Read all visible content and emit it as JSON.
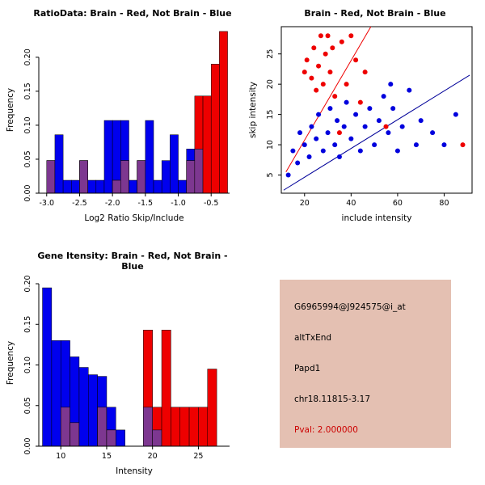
{
  "info": {
    "bg": "#e4c0b2",
    "pval_color": "#cc0000",
    "lines": [
      "G6965994@J924575@i_at",
      "altTxEnd",
      "Papd1",
      "chr18.11815-3.17"
    ],
    "pval": "Pval: 2.000000"
  },
  "chart_data": [
    {
      "type": "bar",
      "subtype": "overlaid-histogram",
      "title": "RatioData: Brain - Red, Not Brain - Blue",
      "xlabel": "Log2 Ratio Skip/Include",
      "ylabel": "Frequency",
      "xlim": [
        -3.12,
        -0.22
      ],
      "ylim": [
        0,
        0.245
      ],
      "xticks": [
        -3.0,
        -2.5,
        -2.0,
        -1.5,
        -1.0,
        -0.5
      ],
      "xtick_labels": [
        "-3.0",
        "-2.5",
        "-2.0",
        "-1.5",
        "-1.0",
        "-0.5"
      ],
      "yticks": [
        0,
        0.05,
        0.1,
        0.15,
        0.2
      ],
      "ytick_labels": [
        "0.00",
        "0.05",
        "0.10",
        "0.15",
        "0.20"
      ],
      "bin_start": -3.0,
      "bin_width": 0.125,
      "overlap_color": "#7d3790",
      "series": [
        {
          "name": "Not Brain",
          "color": "#0000ee",
          "values": [
            0.048,
            0.086,
            0.019,
            0.019,
            0.048,
            0.019,
            0.019,
            0.107,
            0.107,
            0.107,
            0.019,
            0.048,
            0.107,
            0.019,
            0.048,
            0.086,
            0.019,
            0.065,
            0.065,
            0,
            0,
            0
          ]
        },
        {
          "name": "Brain",
          "color": "#ee0000",
          "values": [
            0.048,
            0,
            0,
            0,
            0.048,
            0,
            0,
            0,
            0.019,
            0.048,
            0,
            0.048,
            0,
            0,
            0,
            0,
            0,
            0.048,
            0.143,
            0.143,
            0.19,
            0.238
          ]
        }
      ]
    },
    {
      "type": "scatter",
      "title": "Brain - Red, Not Brain - Blue",
      "xlabel": "include intensity",
      "ylabel": "skip intensity",
      "xlim": [
        10,
        92
      ],
      "ylim": [
        2,
        29.5
      ],
      "xticks": [
        20,
        40,
        60,
        80
      ],
      "xtick_labels": [
        "20",
        "40",
        "60",
        "80"
      ],
      "yticks": [
        5,
        10,
        15,
        20,
        25
      ],
      "ytick_labels": [
        "5",
        "10",
        "15",
        "20",
        "25"
      ],
      "series": [
        {
          "name": "Brain",
          "color": "#ee0000",
          "points": [
            [
              20,
              22
            ],
            [
              21,
              24
            ],
            [
              23,
              21
            ],
            [
              24,
              26
            ],
            [
              25,
              19
            ],
            [
              26,
              23
            ],
            [
              27,
              28
            ],
            [
              28,
              20
            ],
            [
              29,
              25
            ],
            [
              30,
              28
            ],
            [
              31,
              22
            ],
            [
              32,
              26
            ],
            [
              33,
              18
            ],
            [
              35,
              12
            ],
            [
              36,
              27
            ],
            [
              38,
              20
            ],
            [
              40,
              28
            ],
            [
              42,
              24
            ],
            [
              44,
              17
            ],
            [
              46,
              22
            ],
            [
              55,
              13
            ],
            [
              88,
              10
            ]
          ]
        },
        {
          "name": "Not Brain",
          "color": "#0000dd",
          "points": [
            [
              13,
              5
            ],
            [
              15,
              9
            ],
            [
              17,
              7
            ],
            [
              18,
              12
            ],
            [
              20,
              10
            ],
            [
              22,
              8
            ],
            [
              23,
              13
            ],
            [
              25,
              11
            ],
            [
              26,
              15
            ],
            [
              28,
              9
            ],
            [
              30,
              12
            ],
            [
              31,
              16
            ],
            [
              33,
              10
            ],
            [
              34,
              14
            ],
            [
              35,
              8
            ],
            [
              37,
              13
            ],
            [
              38,
              17
            ],
            [
              40,
              11
            ],
            [
              42,
              15
            ],
            [
              44,
              9
            ],
            [
              46,
              13
            ],
            [
              48,
              16
            ],
            [
              50,
              10
            ],
            [
              52,
              14
            ],
            [
              54,
              18
            ],
            [
              56,
              12
            ],
            [
              57,
              20
            ],
            [
              58,
              16
            ],
            [
              60,
              9
            ],
            [
              62,
              13
            ],
            [
              65,
              19
            ],
            [
              68,
              10
            ],
            [
              70,
              14
            ],
            [
              75,
              12
            ],
            [
              80,
              10
            ],
            [
              85,
              15
            ]
          ]
        }
      ],
      "lines": [
        {
          "name": "brain-fit",
          "color": "#ee0000",
          "x1": 12,
          "y1": 5.5,
          "x2": 48.5,
          "y2": 29.5
        },
        {
          "name": "notbrain-fit",
          "color": "#000099",
          "x1": 11,
          "y1": 2.5,
          "x2": 91,
          "y2": 21.5
        }
      ]
    },
    {
      "type": "bar",
      "subtype": "overlaid-histogram",
      "title": "Gene Itensity: Brain - Red, Not Brain - Blue",
      "xlabel": "Intensity",
      "ylabel": "Frequency",
      "xlim": [
        7.6,
        28.4
      ],
      "ylim": [
        0,
        0.205
      ],
      "xticks": [
        10,
        15,
        20,
        25
      ],
      "xtick_labels": [
        "10",
        "15",
        "20",
        "25"
      ],
      "yticks": [
        0,
        0.05,
        0.1,
        0.15,
        0.2
      ],
      "ytick_labels": [
        "0.00",
        "0.05",
        "0.10",
        "0.15",
        "0.20"
      ],
      "bin_start": 8,
      "bin_width": 1,
      "overlap_color": "#7d3790",
      "series": [
        {
          "name": "Not Brain",
          "color": "#0000ee",
          "values": [
            0.195,
            0.13,
            0.13,
            0.11,
            0.097,
            0.088,
            0.086,
            0.048,
            0.02,
            0,
            0,
            0.048,
            0.02,
            0,
            0,
            0,
            0,
            0,
            0,
            0
          ]
        },
        {
          "name": "Brain",
          "color": "#ee0000",
          "values": [
            0,
            0,
            0.048,
            0.029,
            0,
            0,
            0.048,
            0.02,
            0,
            0,
            0,
            0.143,
            0.048,
            0.143,
            0.048,
            0.048,
            0.048,
            0.048,
            0.095,
            0
          ]
        }
      ]
    }
  ]
}
